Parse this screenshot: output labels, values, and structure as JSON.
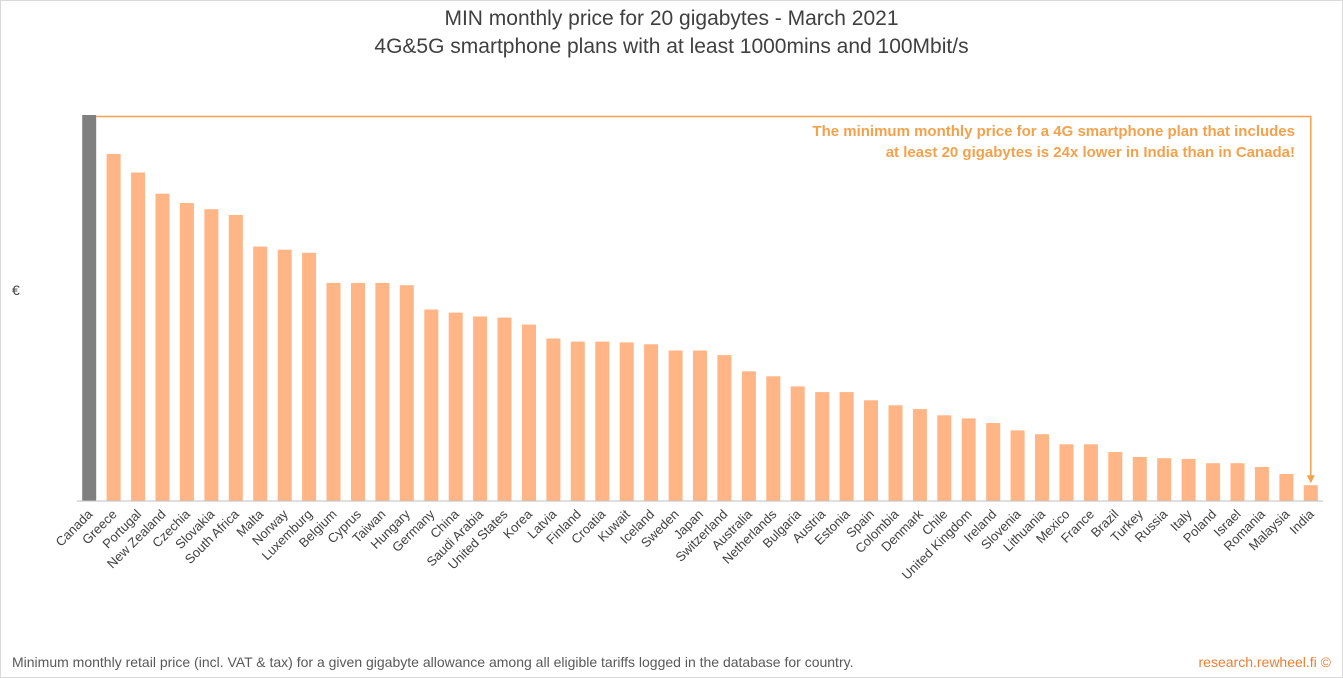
{
  "title": "MIN monthly price for 20 gigabytes - March 2021",
  "subtitle": "4G&5G smartphone plans with at least 1000mins and 100Mbit/s",
  "y_axis_label": "€",
  "annotation": {
    "line1": "The minimum monthly price for a 4G smartphone plan that includes",
    "line2": "at least 20 gigabytes is 24x lower in India than in Canada!"
  },
  "footer": "Minimum monthly retail price (incl. VAT & tax) for a given gigabyte allowance among all eligible tariffs logged in the database for country.",
  "source": "research.rewheel.fi  ©",
  "colors": {
    "highlight_bar": "#808080",
    "bar": "#ffb585",
    "annotation": "#f4a14b",
    "axis": "#bfbfbf"
  },
  "chart_data": {
    "type": "bar",
    "title": "MIN monthly price for 20 gigabytes - March 2021",
    "subtitle": "4G&5G smartphone plans with at least 1000mins and 100Mbit/s",
    "xlabel": "",
    "ylabel": "€",
    "ylim": [
      0,
      100
    ],
    "grid": false,
    "highlight": "Canada",
    "categories": [
      "Canada",
      "Greece",
      "Portugal",
      "New Zealand",
      "Czechia",
      "Slovakia",
      "South Africa",
      "Malta",
      "Norway",
      "Luxemburg",
      "Belgium",
      "Cyprus",
      "Taiwan",
      "Hungary",
      "Germany",
      "China",
      "Saudi Arabia",
      "United States",
      "Korea",
      "Latvia",
      "Finland",
      "Croatia",
      "Kuwait",
      "Iceland",
      "Sweden",
      "Japan",
      "Switzerland",
      "Australia",
      "Netherlands",
      "Bulgaria",
      "Austria",
      "Estonia",
      "Spain",
      "Colombia",
      "Denmark",
      "Chile",
      "United Kingdom",
      "Ireland",
      "Slovenia",
      "Lithuania",
      "Mexico",
      "France",
      "Brazil",
      "Turkey",
      "Russia",
      "Italy",
      "Poland",
      "Israel",
      "Romania",
      "Malaysia",
      "India"
    ],
    "values": [
      100,
      89.9,
      85.1,
      79.6,
      77.2,
      75.6,
      74.1,
      65.9,
      65.1,
      64.3,
      56.5,
      56.5,
      56.5,
      55.9,
      49.6,
      48.8,
      47.8,
      47.5,
      45.7,
      42.1,
      41.3,
      41.3,
      41.1,
      40.6,
      39.0,
      39.0,
      37.8,
      33.6,
      32.3,
      29.7,
      28.2,
      28.2,
      26.1,
      24.8,
      23.8,
      22.2,
      21.4,
      20.2,
      18.3,
      17.3,
      14.7,
      14.7,
      12.7,
      11.4,
      11.1,
      10.9,
      9.8,
      9.8,
      8.8,
      7.0,
      4.1
    ]
  }
}
